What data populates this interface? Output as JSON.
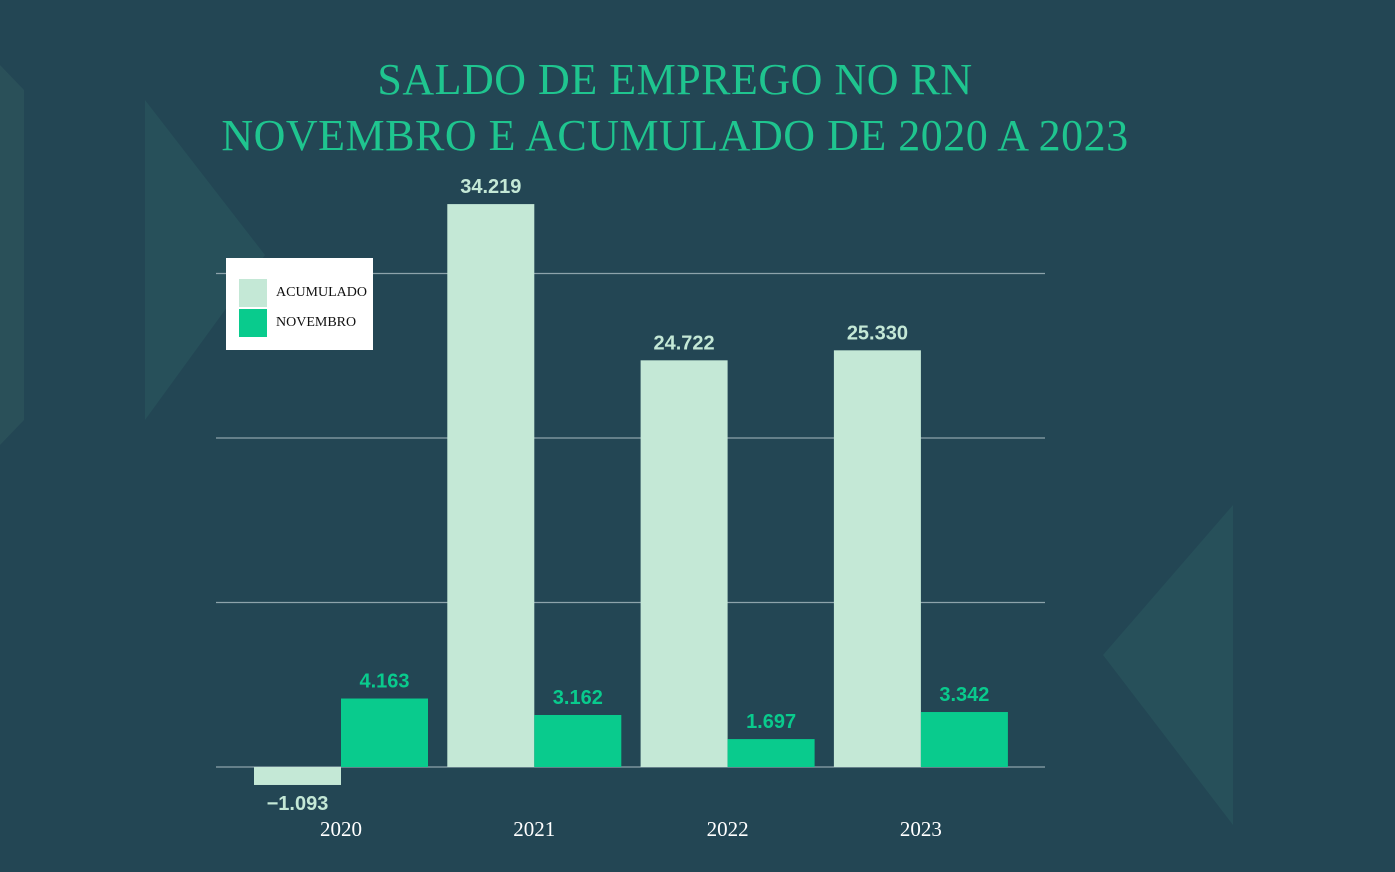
{
  "chart_data": {
    "type": "bar",
    "title": "SALDO DE EMPREGO NO RN",
    "subtitle": "NOVEMBRO E ACUMULADO DE 2020 A 2023",
    "categories": [
      "2020",
      "2021",
      "2022",
      "2023"
    ],
    "series": [
      {
        "name": "ACUMULADO",
        "values": [
          -1093,
          34219,
          24722,
          25330
        ],
        "labels": [
          "−1.093",
          "34.219",
          "24.722",
          "25.330"
        ],
        "color": "#c4e8d6"
      },
      {
        "name": "NOVEMBRO",
        "values": [
          4163,
          3162,
          1697,
          3342
        ],
        "labels": [
          "4.163",
          "3.162",
          "1.697",
          "3.342"
        ],
        "color": "#09cb8d"
      }
    ],
    "ylim": [
      -2000,
      40000
    ],
    "grid": true,
    "legend": "top-left",
    "colors": {
      "background": "#234654",
      "title": "#1fc58f",
      "gridline": "#8da3ab",
      "category_label": "#ffffff"
    }
  }
}
